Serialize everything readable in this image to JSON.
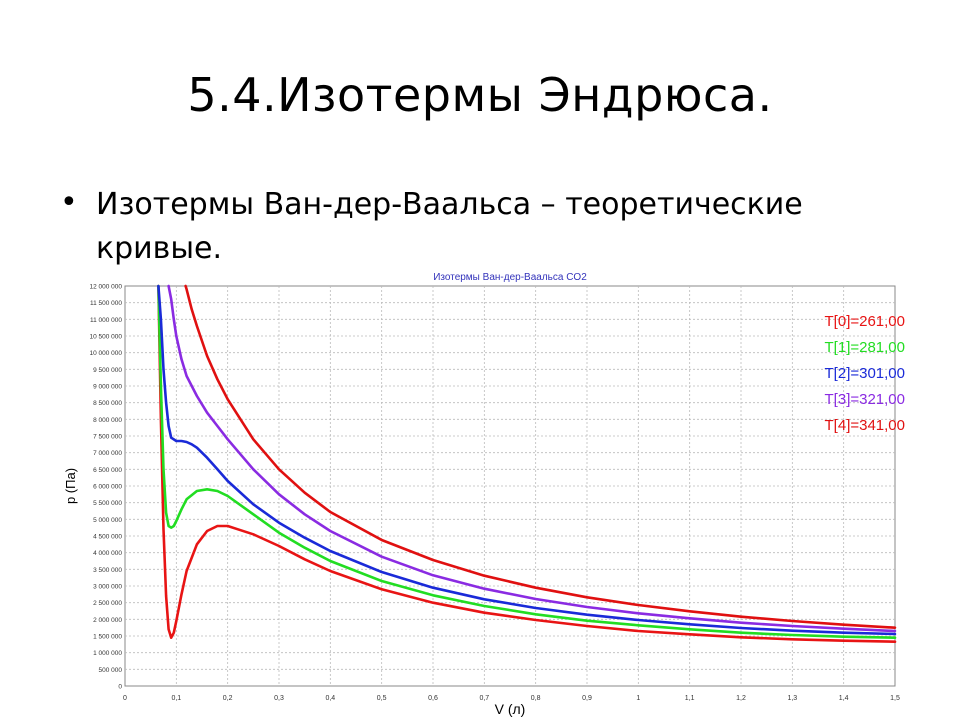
{
  "slide": {
    "title": "5.4.Изотермы Эндрюса.",
    "bullet": "Изотермы Ван-дер-Ваальса – теоретические кривые."
  },
  "chart_data": {
    "type": "line",
    "title": "Изотермы Ван-дер-Ваальса CO2",
    "xlabel": "V (л)",
    "ylabel": "p (Па)",
    "xlim": [
      0,
      1.5
    ],
    "ylim": [
      0,
      12000000
    ],
    "grid": true,
    "legend_position": "top-right",
    "x_ticks": [
      "0",
      "0,1",
      "0,2",
      "0,3",
      "0,4",
      "0,5",
      "0,6",
      "0,7",
      "0,8",
      "0,9",
      "1",
      "1,1",
      "1,2",
      "1,3",
      "1,4",
      "1,5"
    ],
    "y_ticks": [
      "0",
      "500 000",
      "1 000 000",
      "1 500 000",
      "2 000 000",
      "2 500 000",
      "3 000 000",
      "3 500 000",
      "4 000 000",
      "4 500 000",
      "5 000 000",
      "5 500 000",
      "6 000 000",
      "6 500 000",
      "7 000 000",
      "7 500 000",
      "8 000 000",
      "8 500 000",
      "9 000 000",
      "9 500 000",
      "10 000 000",
      "10 500 000",
      "11 000 000",
      "11 500 000",
      "12 000 000"
    ],
    "series": [
      {
        "name": "T[0]=261,00",
        "color": "#e81414",
        "x": [
          0.065,
          0.07,
          0.075,
          0.08,
          0.085,
          0.09,
          0.095,
          0.1,
          0.11,
          0.12,
          0.14,
          0.16,
          0.18,
          0.2,
          0.22,
          0.25,
          0.3,
          0.35,
          0.4,
          0.5,
          0.6,
          0.7,
          0.8,
          0.9,
          1.0,
          1.1,
          1.2,
          1.3,
          1.4,
          1.5
        ],
        "y": [
          12000000,
          8000000,
          4700000,
          2700000,
          1700000,
          1450000,
          1600000,
          1950000,
          2750000,
          3450000,
          4250000,
          4650000,
          4800000,
          4800000,
          4700000,
          4550000,
          4200000,
          3800000,
          3450000,
          2900000,
          2500000,
          2200000,
          1980000,
          1800000,
          1650000,
          1550000,
          1460000,
          1400000,
          1360000,
          1330000
        ]
      },
      {
        "name": "T[1]=281,00",
        "color": "#22dd22",
        "x": [
          0.065,
          0.07,
          0.075,
          0.08,
          0.085,
          0.09,
          0.095,
          0.1,
          0.11,
          0.12,
          0.14,
          0.16,
          0.18,
          0.2,
          0.25,
          0.3,
          0.35,
          0.4,
          0.5,
          0.6,
          0.7,
          0.8,
          0.9,
          1.0,
          1.1,
          1.2,
          1.3,
          1.4,
          1.5
        ],
        "y": [
          12000000,
          9000000,
          6500000,
          5200000,
          4800000,
          4750000,
          4800000,
          4950000,
          5300000,
          5600000,
          5850000,
          5900000,
          5850000,
          5700000,
          5150000,
          4600000,
          4150000,
          3750000,
          3150000,
          2720000,
          2400000,
          2150000,
          1960000,
          1820000,
          1700000,
          1600000,
          1530000,
          1480000,
          1450000
        ]
      },
      {
        "name": "T[2]=301,00",
        "color": "#1a2ad8",
        "x": [
          0.065,
          0.07,
          0.075,
          0.08,
          0.085,
          0.09,
          0.1,
          0.11,
          0.12,
          0.13,
          0.14,
          0.16,
          0.18,
          0.2,
          0.25,
          0.3,
          0.35,
          0.4,
          0.5,
          0.6,
          0.7,
          0.8,
          0.9,
          1.0,
          1.1,
          1.2,
          1.3,
          1.4,
          1.5
        ],
        "y": [
          12000000,
          11000000,
          9500000,
          8500000,
          7800000,
          7450000,
          7350000,
          7350000,
          7320000,
          7250000,
          7150000,
          6850000,
          6500000,
          6150000,
          5450000,
          4900000,
          4450000,
          4050000,
          3420000,
          2950000,
          2600000,
          2340000,
          2140000,
          1980000,
          1850000,
          1740000,
          1660000,
          1600000,
          1560000
        ]
      },
      {
        "name": "T[3]=321,00",
        "color": "#8a2be2",
        "x": [
          0.085,
          0.09,
          0.095,
          0.1,
          0.11,
          0.12,
          0.14,
          0.16,
          0.18,
          0.2,
          0.25,
          0.3,
          0.35,
          0.4,
          0.5,
          0.6,
          0.7,
          0.8,
          0.9,
          1.0,
          1.1,
          1.2,
          1.3,
          1.4,
          1.5
        ],
        "y": [
          12000000,
          11600000,
          11000000,
          10500000,
          9800000,
          9300000,
          8700000,
          8200000,
          7800000,
          7400000,
          6500000,
          5750000,
          5150000,
          4650000,
          3880000,
          3320000,
          2920000,
          2610000,
          2370000,
          2180000,
          2030000,
          1900000,
          1800000,
          1720000,
          1650000
        ]
      },
      {
        "name": "T[4]=341,00",
        "color": "#e01010",
        "x": [
          0.118,
          0.12,
          0.13,
          0.14,
          0.16,
          0.18,
          0.2,
          0.25,
          0.3,
          0.35,
          0.4,
          0.5,
          0.6,
          0.7,
          0.8,
          0.9,
          1.0,
          1.1,
          1.2,
          1.3,
          1.4,
          1.5
        ],
        "y": [
          12000000,
          11900000,
          11300000,
          10800000,
          9900000,
          9200000,
          8600000,
          7400000,
          6500000,
          5800000,
          5220000,
          4380000,
          3780000,
          3310000,
          2950000,
          2660000,
          2430000,
          2240000,
          2080000,
          1950000,
          1840000,
          1750000
        ]
      }
    ]
  }
}
